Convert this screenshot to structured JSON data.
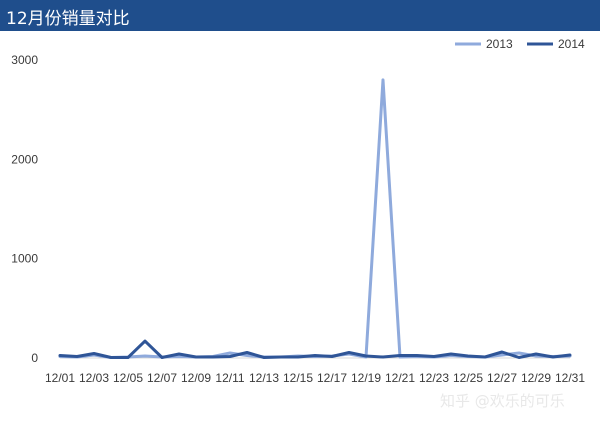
{
  "header": {
    "title": "12月份销量对比"
  },
  "watermark": "知乎 @欢乐的可乐",
  "colors": {
    "title_bg": "#1f4e8c",
    "series_2013": "#8faadc",
    "series_2014": "#2f5597"
  },
  "chart_data": {
    "type": "line",
    "title": "12月份销量对比",
    "xlabel": "",
    "ylabel": "",
    "ylim": [
      0,
      3000
    ],
    "yticks": [
      0,
      1000,
      2000,
      3000
    ],
    "grid": false,
    "legend": "top-right",
    "x": [
      "12/01",
      "12/02",
      "12/03",
      "12/04",
      "12/05",
      "12/06",
      "12/07",
      "12/08",
      "12/09",
      "12/10",
      "12/11",
      "12/12",
      "12/13",
      "12/14",
      "12/15",
      "12/16",
      "12/17",
      "12/18",
      "12/19",
      "12/20",
      "12/21",
      "12/22",
      "12/23",
      "12/24",
      "12/25",
      "12/26",
      "12/27",
      "12/28",
      "12/29",
      "12/30",
      "12/31"
    ],
    "xtick_labels": [
      "12/01",
      "12/03",
      "12/05",
      "12/07",
      "12/09",
      "12/11",
      "12/13",
      "12/15",
      "12/17",
      "12/19",
      "12/21",
      "12/23",
      "12/25",
      "12/27",
      "12/29",
      "12/31"
    ],
    "series": [
      {
        "name": "2013",
        "values": [
          15,
          10,
          30,
          5,
          10,
          20,
          10,
          15,
          10,
          15,
          50,
          25,
          10,
          10,
          20,
          15,
          20,
          40,
          10,
          2800,
          10,
          15,
          10,
          25,
          15,
          10,
          30,
          50,
          20,
          15,
          20
        ]
      },
      {
        "name": "2014",
        "values": [
          25,
          15,
          45,
          5,
          5,
          170,
          5,
          40,
          10,
          10,
          15,
          55,
          5,
          10,
          10,
          25,
          15,
          55,
          20,
          10,
          25,
          25,
          15,
          40,
          20,
          10,
          60,
          5,
          40,
          10,
          30
        ]
      }
    ]
  }
}
